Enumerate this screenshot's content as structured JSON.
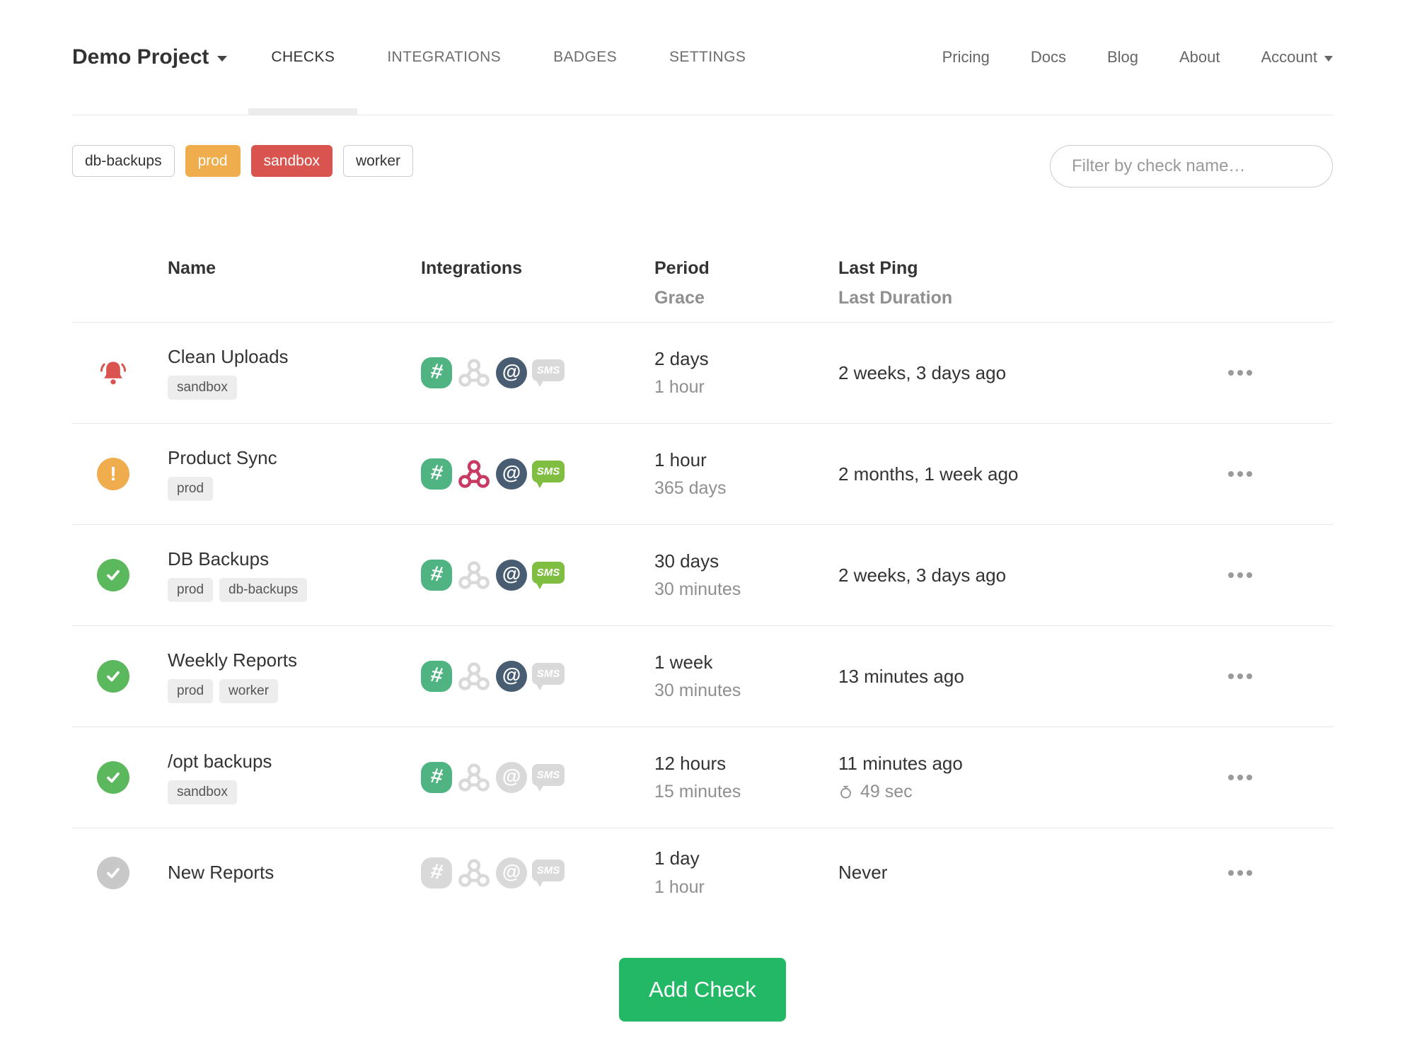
{
  "nav": {
    "brand": "Demo Project",
    "tabs": [
      {
        "label": "CHECKS"
      },
      {
        "label": "INTEGRATIONS"
      },
      {
        "label": "BADGES"
      },
      {
        "label": "SETTINGS"
      }
    ],
    "active_tab": "CHECKS",
    "links": [
      {
        "label": "Pricing"
      },
      {
        "label": "Docs"
      },
      {
        "label": "Blog"
      },
      {
        "label": "About"
      }
    ],
    "account": {
      "label": "Account"
    }
  },
  "filters": {
    "tags": [
      {
        "label": "db-backups",
        "variant": "default"
      },
      {
        "label": "prod",
        "variant": "warning"
      },
      {
        "label": "sandbox",
        "variant": "danger"
      },
      {
        "label": "worker",
        "variant": "default"
      }
    ],
    "search": {
      "placeholder": "Filter by check name…"
    }
  },
  "table": {
    "headers": {
      "name": "Name",
      "integrations": "Integrations",
      "period": "Period",
      "period_sub": "Grace",
      "last_ping": "Last Ping",
      "last_ping_sub": "Last Duration"
    },
    "rows": [
      {
        "status": "alert",
        "name": "Clean Uploads",
        "tags": [
          "sandbox"
        ],
        "integrations": {
          "slack": true,
          "webhook": false,
          "email": true,
          "sms": false
        },
        "period": "2 days",
        "grace": "1 hour",
        "last_ping": "2 weeks, 3 days ago",
        "last_duration": ""
      },
      {
        "status": "grace",
        "name": "Product Sync",
        "tags": [
          "prod"
        ],
        "integrations": {
          "slack": true,
          "webhook": true,
          "email": true,
          "sms": true
        },
        "period": "1 hour",
        "grace": "365 days",
        "last_ping": "2 months, 1 week ago",
        "last_duration": ""
      },
      {
        "status": "up",
        "name": "DB Backups",
        "tags": [
          "prod",
          "db-backups"
        ],
        "integrations": {
          "slack": true,
          "webhook": false,
          "email": true,
          "sms": true
        },
        "period": "30 days",
        "grace": "30 minutes",
        "last_ping": "2 weeks, 3 days ago",
        "last_duration": ""
      },
      {
        "status": "up",
        "name": "Weekly Reports",
        "tags": [
          "prod",
          "worker"
        ],
        "integrations": {
          "slack": true,
          "webhook": false,
          "email": true,
          "sms": false
        },
        "period": "1 week",
        "grace": "30 minutes",
        "last_ping": "13 minutes ago",
        "last_duration": ""
      },
      {
        "status": "up",
        "name": "/opt backups",
        "tags": [
          "sandbox"
        ],
        "integrations": {
          "slack": true,
          "webhook": false,
          "email": false,
          "sms": false
        },
        "period": "12 hours",
        "grace": "15 minutes",
        "last_ping": "11 minutes ago",
        "last_duration": "49 sec"
      },
      {
        "status": "new",
        "name": "New Reports",
        "tags": [],
        "integrations": {
          "slack": false,
          "webhook": false,
          "email": false,
          "sms": false
        },
        "period": "1 day",
        "grace": "1 hour",
        "last_ping": "Never",
        "last_duration": ""
      }
    ]
  },
  "actions": {
    "add_check_label": "Add Check"
  },
  "colors": {
    "slack": "#50b482",
    "webhook": "#c73a63",
    "email": "#495d72",
    "sms": "#7fbe41",
    "off": "#d9d9d9",
    "up": "#5cb85c",
    "grace": "#f0ad4e",
    "alert": "#d9534f",
    "new": "#c8c8c8",
    "add": "#22b865",
    "tag-warning": "#f0ad4e",
    "tag-danger": "#d9534f"
  }
}
